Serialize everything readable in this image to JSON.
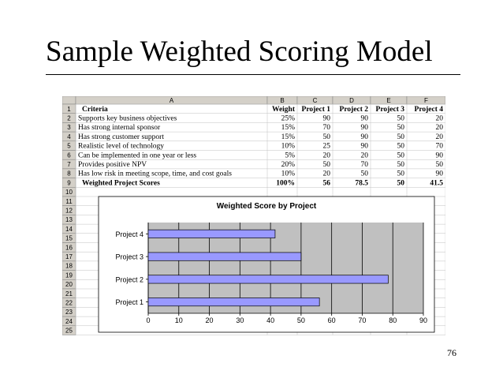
{
  "slide": {
    "title": "Sample Weighted Scoring Model",
    "page_number": "76"
  },
  "spreadsheet": {
    "column_headers": [
      "A",
      "B",
      "C",
      "D",
      "E",
      "F"
    ],
    "row_numbers": [
      "1",
      "2",
      "3",
      "4",
      "5",
      "6",
      "7",
      "8",
      "9",
      "10",
      "11",
      "12",
      "13",
      "14",
      "15",
      "16",
      "17",
      "18",
      "19",
      "20",
      "21",
      "22",
      "23",
      "24",
      "25"
    ],
    "header_row": [
      "Criteria",
      "Weight",
      "Project 1",
      "Project 2",
      "Project 3",
      "Project 4"
    ],
    "rows": [
      [
        "Supports key business objectives",
        "25%",
        "90",
        "90",
        "50",
        "20"
      ],
      [
        "Has strong internal sponsor",
        "15%",
        "70",
        "90",
        "50",
        "20"
      ],
      [
        "Has strong customer support",
        "15%",
        "50",
        "90",
        "50",
        "20"
      ],
      [
        "Realistic level of technology",
        "10%",
        "25",
        "90",
        "50",
        "70"
      ],
      [
        "Can be implemented in one year or less",
        "5%",
        "20",
        "20",
        "50",
        "90"
      ],
      [
        "Provides positive NPV",
        "20%",
        "50",
        "70",
        "50",
        "50"
      ],
      [
        "Has low risk in meeting scope, time, and cost goals",
        "10%",
        "20",
        "50",
        "50",
        "90"
      ]
    ],
    "total_row": [
      "Weighted Project Scores",
      "100%",
      "56",
      "78.5",
      "50",
      "41.5"
    ]
  },
  "chart_data": {
    "type": "bar",
    "orientation": "horizontal",
    "title": "Weighted Score by Project",
    "categories": [
      "Project 4",
      "Project 3",
      "Project 2",
      "Project 1"
    ],
    "values": [
      41.5,
      50,
      78.5,
      56
    ],
    "xlim": [
      0,
      90
    ],
    "xticks": [
      "0",
      "10",
      "20",
      "30",
      "40",
      "50",
      "60",
      "70",
      "80",
      "90"
    ],
    "grid": true,
    "legend": "none",
    "colors": {
      "bar": "#9999ff",
      "plot_bg": "#c0c0c0",
      "grid": "#000000"
    }
  }
}
